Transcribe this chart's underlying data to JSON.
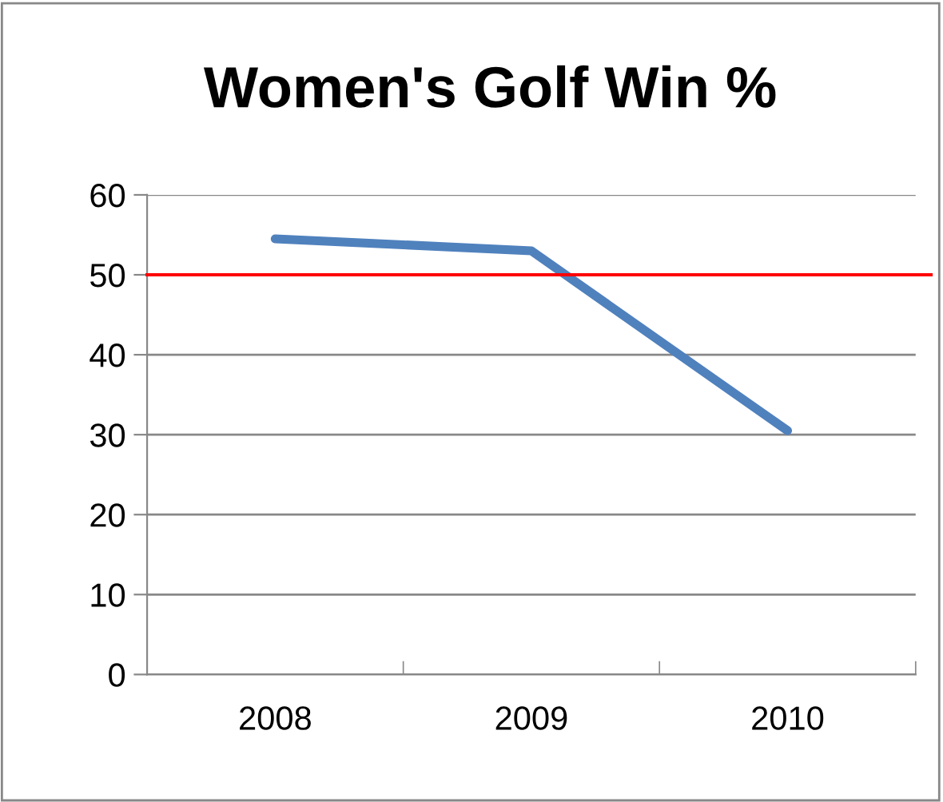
{
  "chart_data": {
    "type": "line",
    "title": "Women's Golf Win %",
    "categories": [
      "2008",
      "2009",
      "2010"
    ],
    "series": [
      {
        "color": "#4f81bd",
        "values": [
          54.5,
          53,
          30.5
        ]
      }
    ],
    "ylim": [
      0,
      60
    ],
    "yticks": [
      0,
      10,
      20,
      30,
      40,
      50,
      60
    ],
    "grid": "y",
    "marker": "none",
    "line_style": "solid",
    "ref_lines": [
      {
        "axis": "y",
        "value": 50,
        "color": "#ff0000"
      }
    ]
  }
}
